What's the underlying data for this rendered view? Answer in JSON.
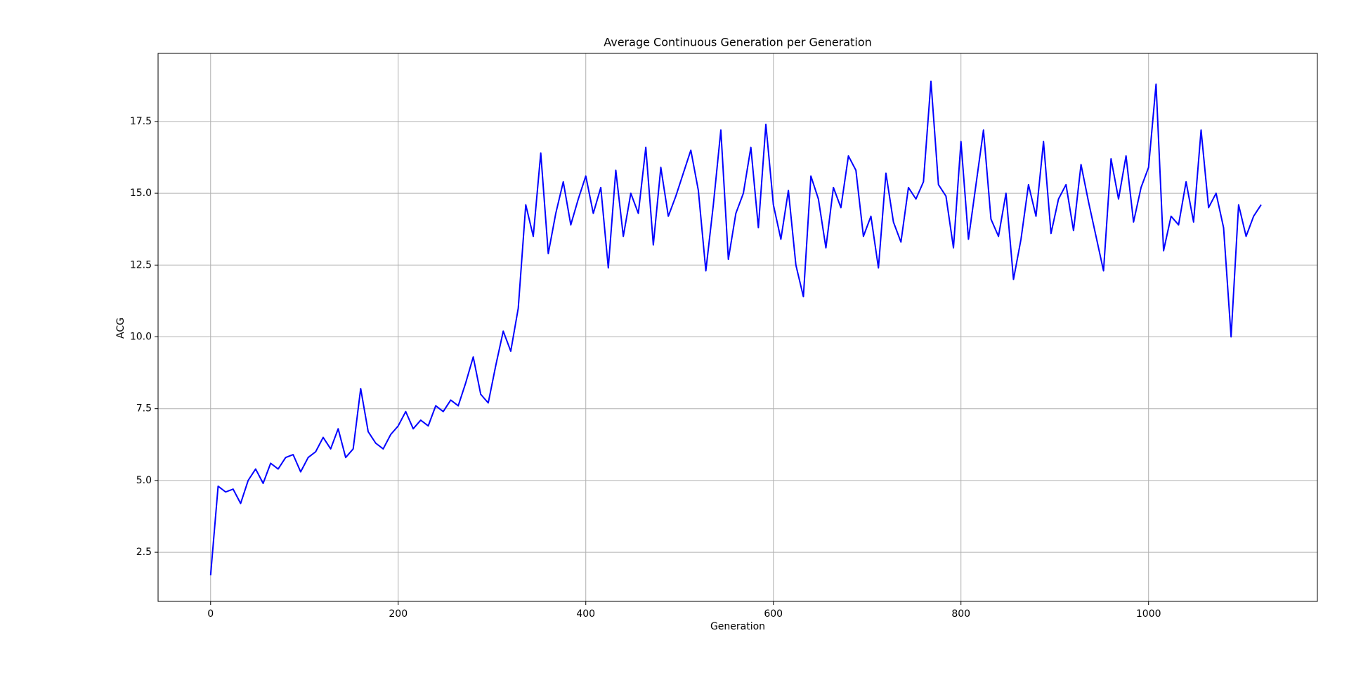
{
  "chart_data": {
    "type": "line",
    "title": "Average Continuous Generation per Generation",
    "x_label": "Generation",
    "y_label": "ACG",
    "x": [
      0,
      8,
      16,
      24,
      32,
      40,
      48,
      56,
      64,
      72,
      80,
      88,
      96,
      104,
      112,
      120,
      128,
      136,
      144,
      152,
      160,
      168,
      176,
      184,
      192,
      200,
      208,
      216,
      224,
      232,
      240,
      248,
      256,
      264,
      272,
      280,
      288,
      296,
      304,
      312,
      320,
      328,
      336,
      344,
      352,
      360,
      368,
      376,
      384,
      392,
      400,
      408,
      416,
      424,
      432,
      440,
      448,
      456,
      464,
      472,
      480,
      488,
      496,
      504,
      512,
      520,
      528,
      536,
      544,
      552,
      560,
      568,
      576,
      584,
      592,
      600,
      608,
      616,
      624,
      632,
      640,
      648,
      656,
      664,
      672,
      680,
      688,
      696,
      704,
      712,
      720,
      728,
      736,
      744,
      752,
      760,
      768,
      776,
      784,
      792,
      800,
      808,
      816,
      824,
      832,
      840,
      848,
      856,
      864,
      872,
      880,
      888,
      896,
      904,
      912,
      920,
      928,
      936,
      944,
      952,
      960,
      968,
      976,
      984,
      992,
      1000,
      1008,
      1016,
      1024,
      1032,
      1040,
      1048,
      1056,
      1064,
      1072,
      1080,
      1088,
      1096,
      1104,
      1112,
      1120
    ],
    "series": [
      {
        "name": "ACG",
        "color": "#0000ff",
        "values": [
          1.7,
          4.8,
          4.6,
          4.7,
          4.2,
          5.0,
          5.4,
          4.9,
          5.6,
          5.4,
          5.8,
          5.9,
          5.3,
          5.8,
          6.0,
          6.5,
          6.1,
          6.8,
          5.8,
          6.1,
          8.2,
          6.7,
          6.3,
          6.1,
          6.6,
          6.9,
          7.4,
          6.8,
          7.1,
          6.9,
          7.6,
          7.4,
          7.8,
          7.6,
          8.4,
          9.3,
          8.0,
          7.7,
          9.0,
          10.2,
          9.5,
          11.0,
          14.6,
          13.5,
          16.4,
          12.9,
          14.3,
          15.4,
          13.9,
          14.8,
          15.6,
          14.3,
          15.2,
          12.4,
          15.8,
          13.5,
          15.0,
          14.3,
          16.6,
          13.2,
          15.9,
          14.2,
          14.9,
          15.7,
          16.5,
          15.1,
          12.3,
          14.6,
          17.2,
          12.7,
          14.3,
          15.0,
          16.6,
          13.8,
          17.4,
          14.6,
          13.4,
          15.1,
          12.5,
          11.4,
          15.6,
          14.8,
          13.1,
          15.2,
          14.5,
          16.3,
          15.8,
          13.5,
          14.2,
          12.4,
          15.7,
          14.0,
          13.3,
          15.2,
          14.8,
          15.4,
          18.9,
          15.3,
          14.9,
          13.1,
          16.8,
          13.4,
          15.3,
          17.2,
          14.1,
          13.5,
          15.0,
          12.0,
          13.4,
          15.3,
          14.2,
          16.8,
          13.6,
          14.8,
          15.3,
          13.7,
          16.0,
          14.7,
          13.5,
          12.3,
          16.2,
          14.8,
          16.3,
          14.0,
          15.2,
          15.9,
          18.8,
          13.0,
          14.2,
          13.9,
          15.4,
          14.0,
          17.2,
          14.5,
          15.0,
          13.8,
          10.0,
          14.6,
          13.5,
          14.2,
          14.6
        ]
      }
    ],
    "xlim": [
      -56,
      1180
    ],
    "ylim": [
      0.79,
      19.87
    ],
    "xticks": [
      0,
      200,
      400,
      600,
      800,
      1000
    ],
    "yticks": [
      2.5,
      {
        "value": 5,
        "label": "5.0"
      },
      7.5,
      {
        "value": 10,
        "label": "10.0"
      },
      12.5,
      {
        "value": 15,
        "label": "15.0"
      },
      17.5
    ],
    "grid": true
  }
}
